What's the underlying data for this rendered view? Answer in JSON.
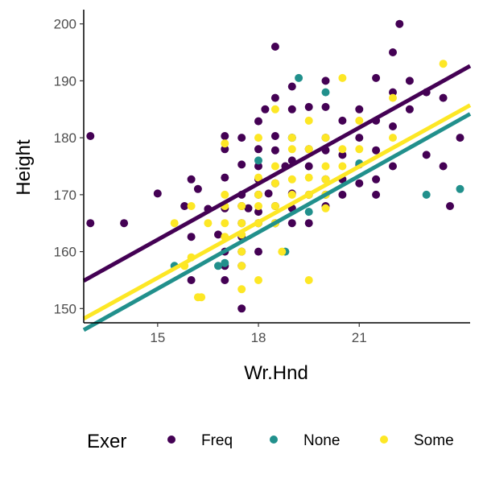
{
  "chart_data": {
    "type": "scatter",
    "xlabel": "Wr.Hnd",
    "ylabel": "Height",
    "xlim": [
      12.8,
      24.3
    ],
    "ylim": [
      147.5,
      202.5
    ],
    "x_ticks": [
      15,
      18,
      21
    ],
    "y_ticks": [
      150,
      160,
      170,
      180,
      190,
      200
    ],
    "grid": false,
    "legend": {
      "title": "Exer",
      "position": "bottom"
    },
    "series": [
      {
        "name": "Freq",
        "color": "#440154",
        "fit_line": {
          "intercept": 112.9,
          "slope": 3.28
        },
        "points": [
          [
            13.0,
            180.3
          ],
          [
            13.0,
            165.0
          ],
          [
            14.0,
            165.0
          ],
          [
            15.0,
            170.2
          ],
          [
            15.8,
            168.0
          ],
          [
            16.0,
            172.7
          ],
          [
            16.0,
            162.6
          ],
          [
            16.0,
            155.0
          ],
          [
            16.2,
            171.0
          ],
          [
            16.5,
            167.5
          ],
          [
            16.8,
            163.0
          ],
          [
            17.0,
            180.3
          ],
          [
            17.0,
            178.0
          ],
          [
            17.0,
            173.0
          ],
          [
            17.0,
            167.6
          ],
          [
            17.0,
            160.0
          ],
          [
            17.0,
            157.5
          ],
          [
            17.0,
            155.0
          ],
          [
            17.5,
            180.0
          ],
          [
            17.5,
            175.3
          ],
          [
            17.5,
            170.0
          ],
          [
            17.5,
            168.0
          ],
          [
            17.5,
            165.0
          ],
          [
            17.5,
            162.6
          ],
          [
            17.5,
            160.0
          ],
          [
            17.5,
            157.5
          ],
          [
            17.5,
            150.0
          ],
          [
            17.7,
            167.6
          ],
          [
            18.0,
            182.9
          ],
          [
            18.0,
            178.0
          ],
          [
            18.0,
            175.0
          ],
          [
            18.0,
            172.7
          ],
          [
            18.0,
            170.0
          ],
          [
            18.0,
            167.0
          ],
          [
            18.0,
            165.0
          ],
          [
            18.0,
            160.0
          ],
          [
            18.2,
            185.0
          ],
          [
            18.3,
            170.2
          ],
          [
            18.5,
            196.0
          ],
          [
            18.5,
            187.0
          ],
          [
            18.5,
            180.3
          ],
          [
            18.5,
            177.8
          ],
          [
            18.5,
            172.0
          ],
          [
            18.5,
            168.0
          ],
          [
            18.5,
            165.0
          ],
          [
            18.8,
            175.0
          ],
          [
            19.0,
            189.0
          ],
          [
            19.0,
            185.0
          ],
          [
            19.0,
            180.0
          ],
          [
            19.0,
            176.0
          ],
          [
            19.0,
            170.2
          ],
          [
            19.0,
            167.6
          ],
          [
            19.0,
            165.0
          ],
          [
            19.5,
            185.4
          ],
          [
            19.5,
            178.0
          ],
          [
            19.5,
            175.0
          ],
          [
            19.5,
            170.0
          ],
          [
            19.5,
            165.0
          ],
          [
            20.0,
            190.0
          ],
          [
            20.0,
            185.4
          ],
          [
            20.0,
            180.0
          ],
          [
            20.0,
            177.8
          ],
          [
            20.0,
            172.7
          ],
          [
            20.0,
            170.0
          ],
          [
            20.0,
            168.0
          ],
          [
            20.5,
            183.0
          ],
          [
            20.5,
            177.0
          ],
          [
            20.5,
            172.7
          ],
          [
            20.5,
            170.0
          ],
          [
            21.0,
            185.0
          ],
          [
            21.0,
            180.0
          ],
          [
            21.0,
            175.3
          ],
          [
            21.0,
            172.0
          ],
          [
            21.5,
            190.5
          ],
          [
            21.5,
            183.0
          ],
          [
            21.5,
            177.8
          ],
          [
            21.5,
            172.7
          ],
          [
            21.5,
            170.0
          ],
          [
            22.0,
            195.0
          ],
          [
            22.0,
            188.0
          ],
          [
            22.0,
            182.0
          ],
          [
            22.0,
            175.0
          ],
          [
            22.2,
            200.0
          ],
          [
            22.5,
            190.0
          ],
          [
            22.5,
            185.0
          ],
          [
            23.0,
            188.0
          ],
          [
            23.0,
            177.0
          ],
          [
            23.5,
            187.0
          ],
          [
            23.5,
            175.0
          ],
          [
            23.7,
            168.0
          ],
          [
            24.0,
            180.0
          ]
        ]
      },
      {
        "name": "None",
        "color": "#21908C",
        "fit_line": {
          "intercept": 104.0,
          "slope": 3.3
        },
        "points": [
          [
            15.5,
            157.5
          ],
          [
            16.8,
            157.5
          ],
          [
            17.0,
            158.0
          ],
          [
            18.0,
            176.0
          ],
          [
            18.5,
            165.0
          ],
          [
            18.8,
            160.0
          ],
          [
            19.0,
            180.0
          ],
          [
            19.2,
            190.5
          ],
          [
            19.5,
            167.0
          ],
          [
            20.0,
            188.0
          ],
          [
            21.0,
            175.5
          ],
          [
            23.0,
            170.0
          ],
          [
            24.0,
            171.0
          ]
        ]
      },
      {
        "name": "Some",
        "color": "#FDE725",
        "fit_line": {
          "intercept": 106.5,
          "slope": 3.26
        },
        "points": [
          [
            15.5,
            165.0
          ],
          [
            15.8,
            157.5
          ],
          [
            16.0,
            168.0
          ],
          [
            16.0,
            159.0
          ],
          [
            16.2,
            152.0
          ],
          [
            16.3,
            152.0
          ],
          [
            16.5,
            165.0
          ],
          [
            17.0,
            179.0
          ],
          [
            17.0,
            170.0
          ],
          [
            17.0,
            168.0
          ],
          [
            17.0,
            165.0
          ],
          [
            17.0,
            162.6
          ],
          [
            17.5,
            168.0
          ],
          [
            17.5,
            165.0
          ],
          [
            17.5,
            163.0
          ],
          [
            17.5,
            160.0
          ],
          [
            17.5,
            157.5
          ],
          [
            17.5,
            153.4
          ],
          [
            18.0,
            180.0
          ],
          [
            18.0,
            173.0
          ],
          [
            18.0,
            170.0
          ],
          [
            18.0,
            168.0
          ],
          [
            18.0,
            165.0
          ],
          [
            18.0,
            155.0
          ],
          [
            18.5,
            185.0
          ],
          [
            18.5,
            175.0
          ],
          [
            18.5,
            172.0
          ],
          [
            18.5,
            168.0
          ],
          [
            18.5,
            165.0
          ],
          [
            18.7,
            160.0
          ],
          [
            19.0,
            180.0
          ],
          [
            19.0,
            178.0
          ],
          [
            19.0,
            172.7
          ],
          [
            19.0,
            170.0
          ],
          [
            19.5,
            183.0
          ],
          [
            19.5,
            178.0
          ],
          [
            19.5,
            173.0
          ],
          [
            19.5,
            170.0
          ],
          [
            19.5,
            155.0
          ],
          [
            20.0,
            180.0
          ],
          [
            20.0,
            175.0
          ],
          [
            20.0,
            172.7
          ],
          [
            20.0,
            170.0
          ],
          [
            20.0,
            167.6
          ],
          [
            20.5,
            190.5
          ],
          [
            20.5,
            178.0
          ],
          [
            20.5,
            175.0
          ],
          [
            21.0,
            183.0
          ],
          [
            21.0,
            178.0
          ],
          [
            22.0,
            187.0
          ],
          [
            22.0,
            180.0
          ],
          [
            23.5,
            193.0
          ]
        ]
      }
    ]
  }
}
